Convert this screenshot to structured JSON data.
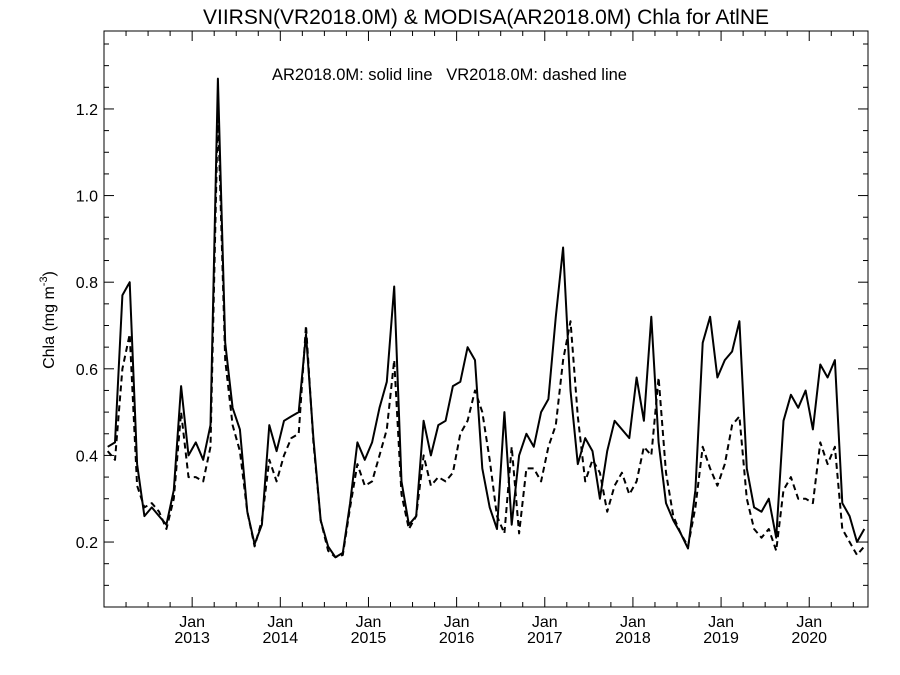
{
  "chart_data": {
    "type": "line",
    "title": "VIIRSN(VR2018.0M) & MODISA(AR2018.0M)  Chla for AtlNE",
    "annotation": "AR2018.0M: solid line   VR2018.0M: dashed line",
    "ylabel": "Chla (mg m",
    "ylabel_sup": "-3",
    "ylabel_end": ")",
    "ylim": [
      0.05,
      1.38
    ],
    "yticks": [
      0.2,
      0.4,
      0.6,
      0.8,
      1.0,
      1.2
    ],
    "ytick_labels": [
      "0.2",
      "0.4",
      "0.6",
      "0.8",
      "1.0",
      "1.2"
    ],
    "xlim": [
      "2012-01-01",
      "2020-09-01"
    ],
    "xticks": [
      {
        "month": "Jan",
        "year": "2013"
      },
      {
        "month": "Jan",
        "year": "2014"
      },
      {
        "month": "Jan",
        "year": "2015"
      },
      {
        "month": "Jan",
        "year": "2016"
      },
      {
        "month": "Jan",
        "year": "2017"
      },
      {
        "month": "Jan",
        "year": "2018"
      },
      {
        "month": "Jan",
        "year": "2019"
      },
      {
        "month": "Jan",
        "year": "2020"
      }
    ],
    "x_start": "2012-01",
    "series": [
      {
        "name": "AR2018.0M",
        "style": "solid",
        "color": "#000000",
        "values": [
          0.42,
          0.43,
          0.77,
          0.8,
          0.38,
          0.26,
          0.28,
          0.26,
          0.24,
          0.32,
          0.56,
          0.4,
          0.43,
          0.39,
          0.47,
          1.27,
          0.66,
          0.51,
          0.46,
          0.27,
          0.195,
          0.24,
          0.47,
          0.41,
          0.48,
          0.49,
          0.5,
          0.68,
          0.44,
          0.25,
          0.19,
          0.165,
          0.175,
          0.29,
          0.43,
          0.39,
          0.43,
          0.51,
          0.57,
          0.79,
          0.34,
          0.24,
          0.26,
          0.48,
          0.4,
          0.47,
          0.48,
          0.56,
          0.57,
          0.65,
          0.62,
          0.37,
          0.28,
          0.23,
          0.5,
          0.24,
          0.4,
          0.45,
          0.42,
          0.5,
          0.53,
          0.72,
          0.88,
          0.55,
          0.38,
          0.44,
          0.41,
          0.3,
          0.41,
          0.48,
          0.46,
          0.44,
          0.58,
          0.48,
          0.72,
          0.43,
          0.29,
          0.25,
          0.22,
          0.185,
          0.32,
          0.66,
          0.72,
          0.58,
          0.62,
          0.64,
          0.71,
          0.37,
          0.28,
          0.27,
          0.3,
          0.21,
          0.48,
          0.54,
          0.51,
          0.55,
          0.46,
          0.61,
          0.58,
          0.62,
          0.29,
          0.26,
          0.2,
          0.23
        ]
      },
      {
        "name": "VR2018.0M",
        "style": "dashed",
        "color": "#000000",
        "values": [
          0.41,
          0.39,
          0.6,
          0.68,
          0.33,
          0.28,
          0.29,
          0.27,
          0.23,
          0.3,
          0.5,
          0.35,
          0.35,
          0.34,
          0.42,
          1.2,
          0.62,
          0.47,
          0.41,
          0.27,
          0.19,
          0.25,
          0.39,
          0.34,
          0.4,
          0.44,
          0.45,
          0.7,
          0.43,
          0.25,
          0.18,
          0.165,
          0.17,
          0.28,
          0.38,
          0.33,
          0.34,
          0.4,
          0.46,
          0.62,
          0.31,
          0.23,
          0.26,
          0.4,
          0.33,
          0.35,
          0.34,
          0.36,
          0.45,
          0.48,
          0.55,
          0.5,
          0.39,
          0.26,
          0.22,
          0.42,
          0.22,
          0.37,
          0.37,
          0.34,
          0.42,
          0.47,
          0.62,
          0.71,
          0.49,
          0.34,
          0.39,
          0.36,
          0.27,
          0.33,
          0.36,
          0.31,
          0.34,
          0.42,
          0.4,
          0.58,
          0.36,
          0.26,
          0.22,
          0.19,
          0.28,
          0.42,
          0.37,
          0.33,
          0.38,
          0.47,
          0.49,
          0.3,
          0.23,
          0.21,
          0.23,
          0.18,
          0.32,
          0.35,
          0.3,
          0.3,
          0.29,
          0.43,
          0.38,
          0.42,
          0.23,
          0.2,
          0.17,
          0.19
        ]
      }
    ],
    "grid": false,
    "legend": "none"
  }
}
